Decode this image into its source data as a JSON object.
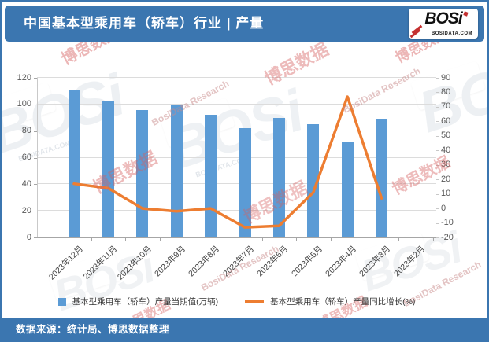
{
  "header": {
    "title": "中国基本型乘用车（轿车）行业 | 产量",
    "logo_text": "BOSi",
    "logo_subtext": "BOSIDATA.COM"
  },
  "legend": {
    "bar_label": "基本型乘用车（轿车）产量当期值(万辆)",
    "line_label": "基本型乘用车（轿车）产量同比增长(%)"
  },
  "footer": {
    "source": "数据来源：统计局、博思数据整理"
  },
  "watermarks": {
    "logo": "BOSi",
    "cn": "博思数据",
    "en": "BosiData Research",
    "domain": "BOSIDATA.COM"
  },
  "colors": {
    "banner": "#3B76B0",
    "bar": "#5B9BD5",
    "line": "#ED7D31",
    "grid": "#DCDCDC",
    "axis_text": "#595959",
    "watermark_red": "#D65F5F",
    "watermark_red_light": "#C98A8A",
    "watermark_gray": "#8FA0B3"
  },
  "chart_data": {
    "type": "bar",
    "subtype": "bar+line combo",
    "categories": [
      "2023年12月",
      "2023年11月",
      "2023年10月",
      "2023年9月",
      "2023年8月",
      "2023年7月",
      "2023年6月",
      "2023年5月",
      "2023年4月",
      "2023年3月",
      "2023年2月"
    ],
    "series": [
      {
        "name": "基本型乘用车（轿车）产量当期值(万辆)",
        "type": "bar",
        "axis": "left",
        "values": [
          111,
          102,
          96,
          100,
          92,
          82,
          90,
          85,
          72,
          89,
          null
        ]
      },
      {
        "name": "基本型乘用车（轿车）产量同比增长(%)",
        "type": "line",
        "axis": "right",
        "values": [
          17,
          14,
          0,
          -2,
          0,
          -13,
          -12,
          11,
          77,
          7,
          null
        ]
      }
    ],
    "left_axis": {
      "min": 0,
      "max": 120,
      "step": 20
    },
    "right_axis": {
      "min": -20,
      "max": 90,
      "step": 10
    },
    "grid": true,
    "legend_position": "bottom",
    "title": "中国基本型乘用车（轿车）行业 | 产量"
  }
}
